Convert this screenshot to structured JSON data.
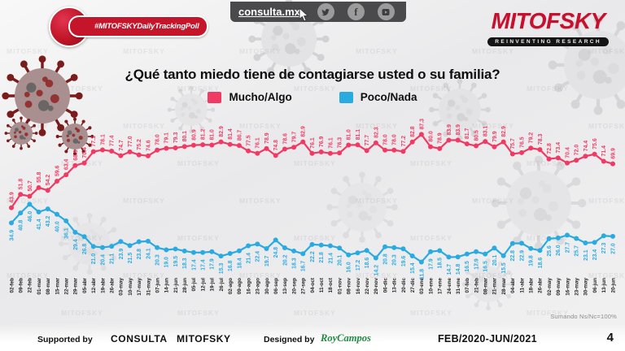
{
  "header": {
    "badge": "#MITOFSKYDailyTrackingPoll",
    "site": "consulta.mx",
    "social_icons": [
      "twitter-icon",
      "facebook-icon",
      "youtube-icon"
    ],
    "brand": "MITOFSKY",
    "brand_tagline": "REINVENTING RESEARCH"
  },
  "title": "¿Qué tanto miedo tiene de contagiarse usted o su familia?",
  "note": "Sumando Ns/Nc=100%",
  "watermark": "MITOFSKY",
  "colors": {
    "mucho_algo": "#f03a63",
    "poco_nada": "#29abe2",
    "brand_red": "#c8102e",
    "badge_red": "#c4152b",
    "axis_text": "#222222"
  },
  "footer": {
    "supported_label": "Supported by",
    "partners": "CONSULTA   MITOFSKY",
    "designed_label": "Designed by",
    "designer": "RoyCampos",
    "period": "FEB/2020-JUN/2021",
    "page": "4"
  },
  "chart_data": {
    "type": "line",
    "title": "¿Qué tanto miedo tiene de contagiarse usted o su familia?",
    "xlabel": "",
    "ylabel": "",
    "ylim": [
      0,
      100
    ],
    "grid": false,
    "legend_position": "top",
    "data_labels": true,
    "note": "Sumando Ns/Nc=100%",
    "categories": [
      "02-feb",
      "09-feb",
      "22-feb",
      "01-mar",
      "08-mar",
      "15-mar",
      "22-mar",
      "29-mar",
      "05-abr",
      "12-abr",
      "19-abr",
      "26-abr",
      "03-may",
      "10-may",
      "17-may",
      "31-may",
      "07-jun",
      "14-jun",
      "21-jun",
      "28-jun",
      "05-jul",
      "12-jul",
      "19-jul",
      "26-jul",
      "02-ago",
      "09-ago",
      "16-ago",
      "23-ago",
      "30-ago",
      "06-sep",
      "13-sep",
      "20-sep",
      "27-sep",
      "04-oct",
      "11-oct",
      "18-oct",
      "01-nov",
      "08-nov",
      "16-nov",
      "22-nov",
      "29-nov",
      "06-dic",
      "13-dic",
      "20-dic",
      "27-dic",
      "03-ene",
      "10-ene",
      "17-ene",
      "24-ene",
      "31-ene",
      "07-feb",
      "21-feb",
      "08-mar",
      "21-mar",
      "28-mar",
      "04-abr",
      "11-abr",
      "18-abr",
      "26-abr",
      "02-may",
      "09-may",
      "16-may",
      "23-may",
      "30-may",
      "06-jun",
      "13-jun",
      "20-jun"
    ],
    "series": [
      {
        "name": "Mucho/Algo",
        "color": "#f03a63",
        "values": [
          43.9,
          51.8,
          50.7,
          55.8,
          54.2,
          59.6,
          63.4,
          68.9,
          70.4,
          77.1,
          78.1,
          77.4,
          74.7,
          77.0,
          75.2,
          74.6,
          78.0,
          79.1,
          79.3,
          80.1,
          80.9,
          81.2,
          81.0,
          82.9,
          81.4,
          80.7,
          77.5,
          76.1,
          78.9,
          74.8,
          78.6,
          79.7,
          82.9,
          76.1,
          76.9,
          76.1,
          76.3,
          81.0,
          81.1,
          77.7,
          82.3,
          78.0,
          78.0,
          77.2,
          82.8,
          87.3,
          80.0,
          78.9,
          83.9,
          83.9,
          81.7,
          80.5,
          83.1,
          79.9,
          82.9,
          75.7,
          76.5,
          79.2,
          78.3,
          72.8,
          73.4,
          70.4,
          72.0,
          74.4,
          75.6,
          71.4,
          69.9
        ]
      },
      {
        "name": "Poco/Nada",
        "color": "#29abe2",
        "values": [
          34.9,
          40.8,
          46.0,
          41.4,
          43.2,
          40.0,
          36.1,
          29.4,
          26.8,
          21.0,
          20.4,
          21.1,
          23.9,
          21.5,
          23.8,
          24.1,
          20.3,
          19.0,
          19.5,
          18.3,
          17.4,
          17.4,
          17.9,
          15.3,
          16.8,
          18.4,
          21.4,
          22.4,
          19.7,
          24.8,
          20.2,
          18.3,
          16.7,
          22.2,
          21.8,
          21.4,
          20.1,
          16.0,
          17.2,
          18.6,
          14.2,
          20.8,
          20.3,
          19.6,
          15.4,
          11.8,
          17.9,
          18.5,
          14.7,
          14.8,
          16.5,
          17.9,
          16.5,
          20.1,
          15.5,
          22.8,
          22.9,
          19.8,
          18.6,
          25.6,
          26.0,
          27.7,
          25.7,
          23.1,
          23.4,
          27.3,
          27.0
        ]
      }
    ]
  }
}
